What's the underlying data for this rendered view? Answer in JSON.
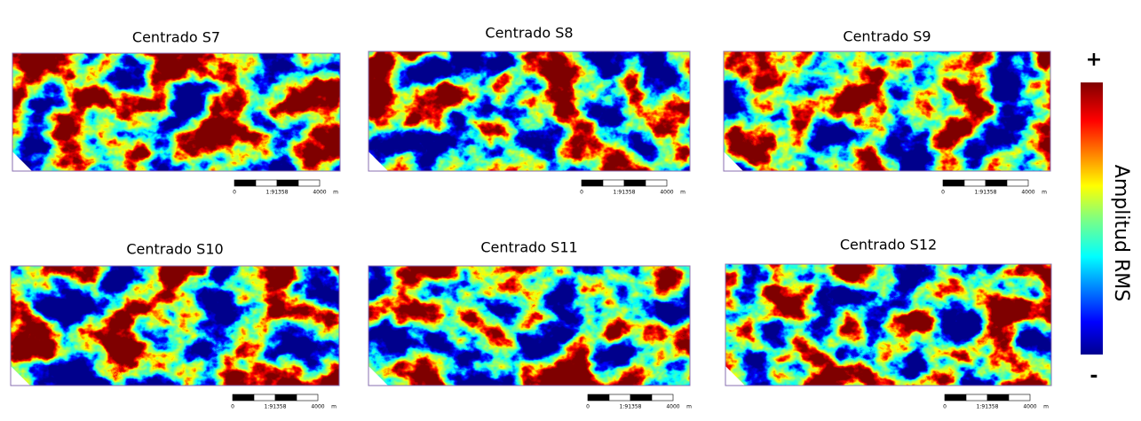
{
  "panels": [
    {
      "title": "Centrado S7",
      "scale": {
        "start": "0",
        "ratio": "1:91358",
        "end": "4000",
        "unit": "m"
      }
    },
    {
      "title": "Centrado S8",
      "scale": {
        "start": "0",
        "ratio": "1:91358",
        "end": "4000",
        "unit": "m"
      }
    },
    {
      "title": "Centrado S9",
      "scale": {
        "start": "0",
        "ratio": "1:91358",
        "end": "4000",
        "unit": "m"
      }
    },
    {
      "title": "Centrado S10",
      "scale": {
        "start": "0",
        "ratio": "1:91358",
        "end": "4000",
        "unit": "m"
      }
    },
    {
      "title": "Centrado S11",
      "scale": {
        "start": "0",
        "ratio": "1:91358",
        "end": "4000",
        "unit": "m"
      }
    },
    {
      "title": "Centrado S12",
      "scale": {
        "start": "0",
        "ratio": "1:91358",
        "end": "4000",
        "unit": "m"
      }
    }
  ],
  "colorbar": {
    "label": "Amplitud RMS",
    "max_label": "+",
    "min_label": "-"
  }
}
